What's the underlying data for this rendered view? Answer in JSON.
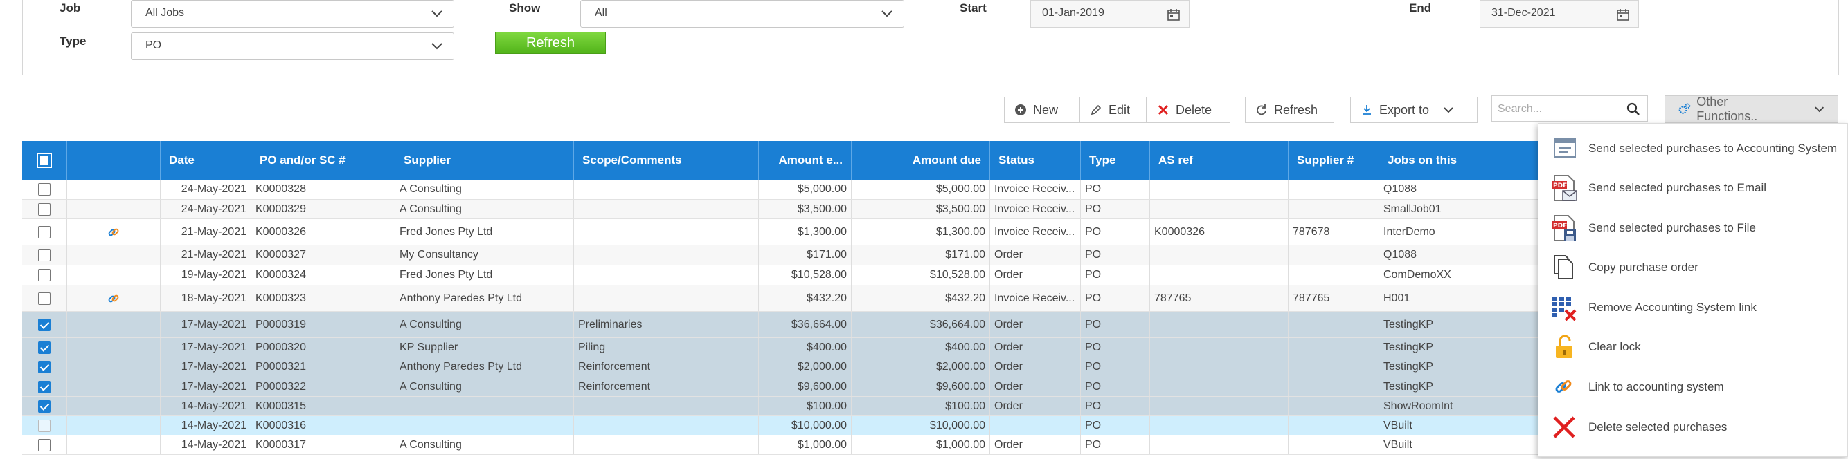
{
  "filters": {
    "job_label": "Job",
    "job_value": "All Jobs",
    "type_label": "Type",
    "type_value": "PO",
    "show_label": "Show",
    "show_value": "All",
    "start_label": "Start",
    "start_value": "01-Jan-2019",
    "end_label": "End",
    "end_value": "31-Dec-2021",
    "refresh_label": "Refresh"
  },
  "toolbar": {
    "new_label": "New",
    "edit_label": "Edit",
    "delete_label": "Delete",
    "refresh_label": "Refresh",
    "export_label": "Export to",
    "search_placeholder": "Search...",
    "other_functions_label": "Other Functions.."
  },
  "columns": [
    "Date",
    "PO and/or SC #",
    "Supplier",
    "Scope/Comments",
    "Amount e...",
    "Amount due",
    "Status",
    "Type",
    "AS ref",
    "Supplier #",
    "Jobs on this"
  ],
  "rows": [
    {
      "checked": false,
      "link": false,
      "date": "24-May-2021",
      "po": "K0000328",
      "supplier": "A Consulting",
      "scope": "",
      "amount_e": "$5,000.00",
      "amount_due": "$5,000.00",
      "status": "Invoice Receiv...",
      "type": "PO",
      "as_ref": "",
      "supplier_no": "",
      "jobs": "Q1088"
    },
    {
      "checked": false,
      "link": false,
      "date": "24-May-2021",
      "po": "K0000329",
      "supplier": "A Consulting",
      "scope": "",
      "amount_e": "$3,500.00",
      "amount_due": "$3,500.00",
      "status": "Invoice Receiv...",
      "type": "PO",
      "as_ref": "",
      "supplier_no": "",
      "jobs": "SmallJob01"
    },
    {
      "checked": false,
      "link": true,
      "date": "21-May-2021",
      "po": "K0000326",
      "supplier": "Fred Jones Pty Ltd",
      "scope": "",
      "amount_e": "$1,300.00",
      "amount_due": "$1,300.00",
      "status": "Invoice Receiv...",
      "type": "PO",
      "as_ref": "K0000326",
      "supplier_no": "787678",
      "jobs": "InterDemo"
    },
    {
      "checked": false,
      "link": false,
      "date": "21-May-2021",
      "po": "K0000327",
      "supplier": "My Consultancy",
      "scope": "",
      "amount_e": "$171.00",
      "amount_due": "$171.00",
      "status": "Order",
      "type": "PO",
      "as_ref": "",
      "supplier_no": "",
      "jobs": "Q1088"
    },
    {
      "checked": false,
      "link": false,
      "date": "19-May-2021",
      "po": "K0000324",
      "supplier": "Fred Jones Pty Ltd",
      "scope": "",
      "amount_e": "$10,528.00",
      "amount_due": "$10,528.00",
      "status": "Order",
      "type": "PO",
      "as_ref": "",
      "supplier_no": "",
      "jobs": "ComDemoXX"
    },
    {
      "checked": false,
      "link": true,
      "date": "18-May-2021",
      "po": "K0000323",
      "supplier": "Anthony Paredes Pty Ltd",
      "scope": "",
      "amount_e": "$432.20",
      "amount_due": "$432.20",
      "status": "Invoice Receiv...",
      "type": "PO",
      "as_ref": "787765",
      "supplier_no": "787765",
      "jobs": "H001"
    },
    {
      "checked": true,
      "link": false,
      "date": "17-May-2021",
      "po": "P0000319",
      "supplier": "A Consulting",
      "scope": "Preliminaries",
      "amount_e": "$36,664.00",
      "amount_due": "$36,664.00",
      "status": "Order",
      "type": "PO",
      "as_ref": "",
      "supplier_no": "",
      "jobs": "TestingKP"
    },
    {
      "checked": true,
      "link": false,
      "date": "17-May-2021",
      "po": "P0000320",
      "supplier": "KP Supplier",
      "scope": "Piling",
      "amount_e": "$400.00",
      "amount_due": "$400.00",
      "status": "Order",
      "type": "PO",
      "as_ref": "",
      "supplier_no": "",
      "jobs": "TestingKP"
    },
    {
      "checked": true,
      "link": false,
      "date": "17-May-2021",
      "po": "P0000321",
      "supplier": "Anthony Paredes Pty Ltd",
      "scope": "Reinforcement",
      "amount_e": "$2,000.00",
      "amount_due": "$2,000.00",
      "status": "Order",
      "type": "PO",
      "as_ref": "",
      "supplier_no": "",
      "jobs": "TestingKP"
    },
    {
      "checked": true,
      "link": false,
      "date": "17-May-2021",
      "po": "P0000322",
      "supplier": "A Consulting",
      "scope": "Reinforcement",
      "amount_e": "$9,600.00",
      "amount_due": "$9,600.00",
      "status": "Order",
      "type": "PO",
      "as_ref": "",
      "supplier_no": "",
      "jobs": "TestingKP"
    },
    {
      "checked": true,
      "link": false,
      "date": "14-May-2021",
      "po": "K0000315",
      "supplier": "",
      "scope": "",
      "amount_e": "$100.00",
      "amount_due": "$100.00",
      "status": "Order",
      "type": "PO",
      "as_ref": "",
      "supplier_no": "",
      "jobs": "ShowRoomInt"
    },
    {
      "checked": false,
      "link": false,
      "date": "14-May-2021",
      "po": "K0000316",
      "supplier": "",
      "scope": "",
      "amount_e": "$10,000.00",
      "amount_due": "$10,000.00",
      "status": "",
      "type": "PO",
      "as_ref": "",
      "supplier_no": "",
      "jobs": "VBuilt"
    },
    {
      "checked": false,
      "link": false,
      "date": "14-May-2021",
      "po": "K0000317",
      "supplier": "A Consulting",
      "scope": "",
      "amount_e": "$1,000.00",
      "amount_due": "$1,000.00",
      "status": "Order",
      "type": "PO",
      "as_ref": "",
      "supplier_no": "",
      "jobs": "VBuilt"
    }
  ],
  "menu": [
    {
      "label": "Send selected purchases to Accounting System",
      "icon": "accounting-export-icon"
    },
    {
      "label": "Send selected purchases to Email",
      "icon": "pdf-email-icon"
    },
    {
      "label": "Send selected purchases to File",
      "icon": "pdf-save-icon"
    },
    {
      "label": "Copy purchase order",
      "icon": "copy-icon"
    },
    {
      "label": "Remove Accounting System link",
      "icon": "remove-link-grid-icon"
    },
    {
      "label": "Clear lock",
      "icon": "unlock-icon"
    },
    {
      "label": "Link to accounting system",
      "icon": "link-icon"
    },
    {
      "label": "Delete selected purchases",
      "icon": "delete-x-icon"
    }
  ],
  "colors": {
    "header_blue": "#1a7fd4",
    "selected_row": "#c8d7e1",
    "current_row": "#cfeefd",
    "highlight": "#ffff3a",
    "refresh_green": "#52b41a",
    "delete_red": "#e02020"
  }
}
